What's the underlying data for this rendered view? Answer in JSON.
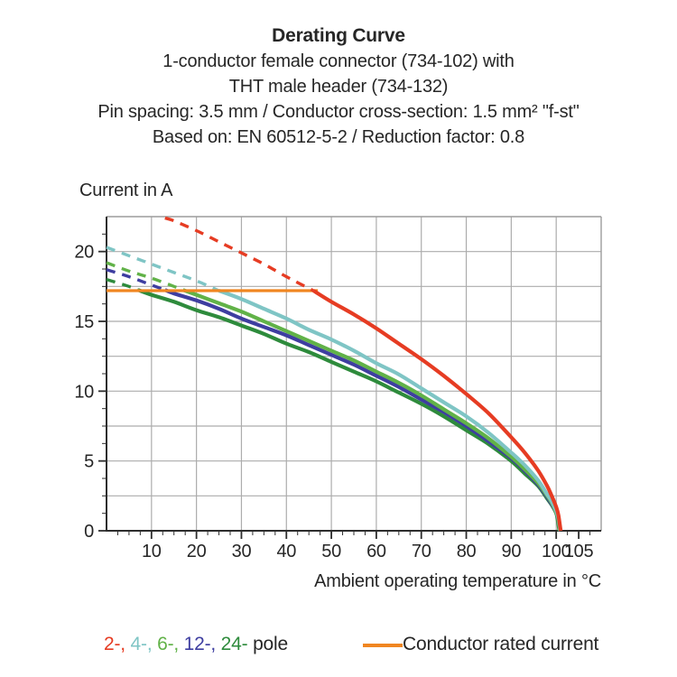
{
  "header": {
    "title": "Derating Curve",
    "subtitle_lines": [
      "1-conductor female connector (734-102) with",
      "THT male header (734-132)",
      "Pin spacing: 3.5 mm / Conductor cross-section: 1.5 mm² \"f-st\"",
      "Based on: EN 60512-5-2 / Reduction factor: 0.8"
    ]
  },
  "chart_data": {
    "type": "line",
    "title": "Derating Curve",
    "xlabel": "Ambient operating temperature in °C",
    "ylabel": "Current in A",
    "xlim": [
      0,
      110
    ],
    "ylim": [
      0,
      22.5
    ],
    "x_major_ticks": [
      10,
      20,
      30,
      40,
      50,
      60,
      70,
      80,
      90,
      100,
      105
    ],
    "x_minor_step": 2.5,
    "y_major_ticks": [
      0,
      5,
      10,
      15,
      20
    ],
    "y_minor_step": 1.25,
    "x_gridlines": [
      10,
      20,
      30,
      40,
      50,
      60,
      70,
      80,
      90,
      100
    ],
    "y_gridlines": [
      2.5,
      5,
      7.5,
      10,
      12.5,
      15,
      17.5,
      20
    ],
    "grid": true,
    "legend_position": "bottom",
    "rated_current": {
      "value": 17.2,
      "x_start": 0,
      "x_end": 47,
      "color": "#f08621",
      "label": "Conductor rated current"
    },
    "series": [
      {
        "name": "24-pole",
        "color": "#2e8b3c",
        "dash_until": 7,
        "points": [
          [
            0,
            18.0
          ],
          [
            5,
            17.5
          ],
          [
            7,
            17.25
          ],
          [
            10,
            16.9
          ],
          [
            15,
            16.4
          ],
          [
            20,
            15.8
          ],
          [
            25,
            15.3
          ],
          [
            30,
            14.7
          ],
          [
            35,
            14.1
          ],
          [
            40,
            13.4
          ],
          [
            45,
            12.8
          ],
          [
            50,
            12.1
          ],
          [
            55,
            11.4
          ],
          [
            60,
            10.7
          ],
          [
            65,
            9.9
          ],
          [
            70,
            9.1
          ],
          [
            75,
            8.2
          ],
          [
            80,
            7.2
          ],
          [
            85,
            6.2
          ],
          [
            90,
            5.0
          ],
          [
            93,
            4.1
          ],
          [
            96,
            3.2
          ],
          [
            98,
            2.3
          ],
          [
            99,
            1.85
          ],
          [
            100,
            1.25
          ],
          [
            100.3,
            0.8
          ],
          [
            100.7,
            0
          ]
        ]
      },
      {
        "name": "12-pole",
        "color": "#3e3ea0",
        "dash_until": 13,
        "points": [
          [
            0,
            18.7
          ],
          [
            5,
            18.2
          ],
          [
            10,
            17.6
          ],
          [
            13,
            17.25
          ],
          [
            15,
            17.0
          ],
          [
            20,
            16.5
          ],
          [
            25,
            15.9
          ],
          [
            30,
            15.2
          ],
          [
            35,
            14.6
          ],
          [
            40,
            14.0
          ],
          [
            45,
            13.3
          ],
          [
            50,
            12.6
          ],
          [
            55,
            11.9
          ],
          [
            60,
            11.1
          ],
          [
            65,
            10.3
          ],
          [
            70,
            9.4
          ],
          [
            75,
            8.5
          ],
          [
            80,
            7.5
          ],
          [
            85,
            6.4
          ],
          [
            90,
            5.2
          ],
          [
            93,
            4.3
          ],
          [
            96,
            3.3
          ],
          [
            98,
            2.4
          ],
          [
            99,
            1.9
          ],
          [
            100,
            1.3
          ],
          [
            100.4,
            0.85
          ],
          [
            100.8,
            0
          ]
        ]
      },
      {
        "name": "6-pole",
        "color": "#61b248",
        "dash_until": 17,
        "points": [
          [
            0,
            19.2
          ],
          [
            5,
            18.6
          ],
          [
            10,
            18.1
          ],
          [
            15,
            17.5
          ],
          [
            17,
            17.25
          ],
          [
            20,
            16.9
          ],
          [
            25,
            16.3
          ],
          [
            30,
            15.7
          ],
          [
            35,
            15.0
          ],
          [
            40,
            14.3
          ],
          [
            45,
            13.6
          ],
          [
            50,
            12.9
          ],
          [
            55,
            12.2
          ],
          [
            60,
            11.4
          ],
          [
            65,
            10.6
          ],
          [
            70,
            9.7
          ],
          [
            75,
            8.7
          ],
          [
            80,
            7.7
          ],
          [
            85,
            6.6
          ],
          [
            90,
            5.3
          ],
          [
            93,
            4.4
          ],
          [
            96,
            3.4
          ],
          [
            98,
            2.5
          ],
          [
            99,
            2.0
          ],
          [
            100,
            1.3
          ],
          [
            100.4,
            0.9
          ],
          [
            100.8,
            0
          ]
        ]
      },
      {
        "name": "4-pole",
        "color": "#7fc5c5",
        "dash_until": 25,
        "points": [
          [
            0,
            20.3
          ],
          [
            5,
            19.7
          ],
          [
            10,
            19.1
          ],
          [
            15,
            18.5
          ],
          [
            20,
            17.9
          ],
          [
            25,
            17.2
          ],
          [
            30,
            16.6
          ],
          [
            35,
            15.9
          ],
          [
            40,
            15.2
          ],
          [
            45,
            14.4
          ],
          [
            50,
            13.7
          ],
          [
            55,
            12.9
          ],
          [
            60,
            12.0
          ],
          [
            65,
            11.2
          ],
          [
            70,
            10.2
          ],
          [
            75,
            9.2
          ],
          [
            80,
            8.2
          ],
          [
            85,
            7.0
          ],
          [
            90,
            5.6
          ],
          [
            93,
            4.7
          ],
          [
            96,
            3.6
          ],
          [
            98,
            2.6
          ],
          [
            99,
            2.1
          ],
          [
            100,
            1.4
          ],
          [
            100.5,
            0.9
          ],
          [
            100.9,
            0
          ]
        ]
      },
      {
        "name": "2-pole",
        "color": "#e63c23",
        "dash_until": 46,
        "points": [
          [
            13,
            22.4
          ],
          [
            15,
            22.2
          ],
          [
            20,
            21.5
          ],
          [
            25,
            20.7
          ],
          [
            30,
            19.9
          ],
          [
            35,
            19.1
          ],
          [
            40,
            18.2
          ],
          [
            46,
            17.2
          ],
          [
            50,
            16.4
          ],
          [
            55,
            15.5
          ],
          [
            60,
            14.5
          ],
          [
            65,
            13.4
          ],
          [
            70,
            12.3
          ],
          [
            75,
            11.1
          ],
          [
            80,
            9.8
          ],
          [
            85,
            8.4
          ],
          [
            90,
            6.7
          ],
          [
            93,
            5.6
          ],
          [
            96,
            4.3
          ],
          [
            98,
            3.2
          ],
          [
            99,
            2.5
          ],
          [
            100,
            1.7
          ],
          [
            100.5,
            1.1
          ],
          [
            101,
            0
          ]
        ]
      }
    ],
    "legend": {
      "pole_items": [
        {
          "label": "2-",
          "color": "#e63c23"
        },
        {
          "label": "4-",
          "color": "#7fc5c5"
        },
        {
          "label": "6-",
          "color": "#61b248"
        },
        {
          "label": "12-",
          "color": "#3e3ea0"
        },
        {
          "label": "24-",
          "color": "#2e8b3c"
        }
      ],
      "pole_suffix": " pole"
    }
  }
}
